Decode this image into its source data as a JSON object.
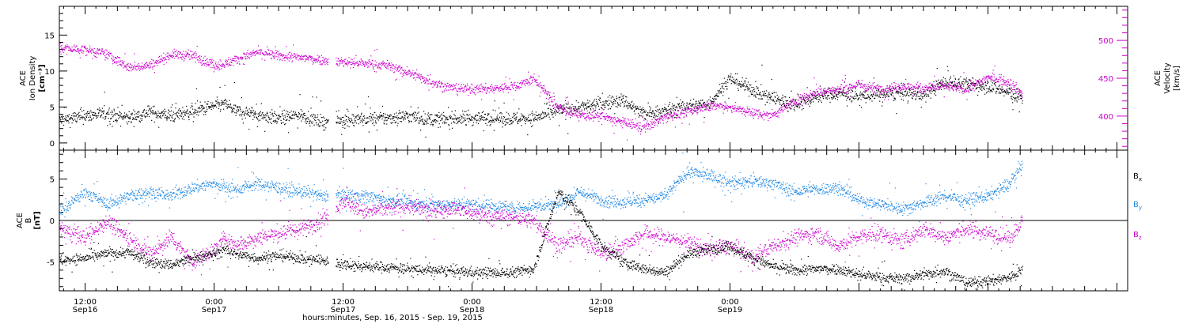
{
  "chart_data": [
    {
      "type": "scatter",
      "panel": "plasma",
      "ylabel_left": [
        "ACE",
        "Ion Density",
        "[cm⁻³]"
      ],
      "ylabel_right": [
        "ACE",
        "Velocity",
        "[km/s]"
      ],
      "ylim_left": [
        -1,
        19
      ],
      "yticks_left": [
        0,
        5,
        10,
        15
      ],
      "ylim_right": [
        355,
        545
      ],
      "yticks_right": [
        400,
        450,
        500
      ],
      "series": [
        {
          "name": "Ion Density",
          "axis": "left",
          "color": "#000000",
          "x": [
            -2.4,
            0,
            2,
            4,
            6,
            8,
            10,
            12,
            13,
            14,
            16,
            18,
            20,
            22,
            24,
            26,
            28,
            30,
            32,
            34,
            36,
            38,
            40,
            41.7,
            44,
            46,
            48,
            50,
            52,
            54,
            56,
            58,
            60,
            62,
            64,
            66,
            68,
            70,
            72,
            74,
            76,
            78,
            80,
            82,
            84,
            86,
            87.2
          ],
          "y": [
            3.2,
            3.8,
            4.2,
            3.5,
            4.3,
            3.8,
            4.5,
            5.2,
            5.5,
            4.5,
            4.0,
            3.4,
            4.0,
            3.0,
            3.2,
            3.4,
            3.5,
            3.8,
            3.3,
            3.4,
            3.5,
            3.6,
            3.4,
            3.5,
            4.5,
            5.0,
            5.5,
            6.0,
            4.0,
            4.5,
            5.2,
            5.5,
            9.0,
            7.5,
            6.2,
            5.5,
            6.5,
            7.0,
            6.5,
            6.8,
            7.0,
            6.8,
            8.5,
            8.2,
            8.0,
            7.0,
            6.0
          ]
        },
        {
          "name": "Velocity",
          "axis": "right",
          "color": "#cc00cc",
          "x": [
            -2.4,
            0,
            2,
            4,
            6,
            8,
            10,
            12,
            13,
            14,
            16,
            18,
            20,
            22,
            24,
            26,
            28,
            30,
            32,
            34,
            36,
            38,
            40,
            41.7,
            44,
            46,
            48,
            50,
            52,
            54,
            56,
            58,
            60,
            62,
            64,
            66,
            68,
            70,
            72,
            74,
            76,
            78,
            80,
            82,
            84,
            86,
            87.2
          ],
          "y": [
            490,
            488,
            482,
            465,
            468,
            482,
            480,
            468,
            470,
            475,
            485,
            480,
            478,
            475,
            472,
            470,
            468,
            458,
            447,
            438,
            436,
            437,
            440,
            450,
            412,
            402,
            400,
            392,
            385,
            400,
            405,
            415,
            412,
            405,
            402,
            420,
            432,
            435,
            442,
            436,
            440,
            437,
            440,
            436,
            452,
            445,
            430
          ]
        }
      ]
    },
    {
      "type": "scatter",
      "panel": "magnetic-field",
      "ylabel_left": [
        "ACE",
        "B",
        "[nT]"
      ],
      "ylim": [
        -8.5,
        8.5
      ],
      "yticks": [
        -5,
        0,
        5
      ],
      "legend_position": "right",
      "series": [
        {
          "name": "Bx",
          "label_main": "B",
          "label_sub": "x",
          "color": "#000000",
          "x": [
            -2.4,
            0,
            2,
            4,
            6,
            8,
            10,
            12,
            13,
            14,
            16,
            18,
            20,
            22,
            24,
            26,
            28,
            30,
            32,
            34,
            36,
            38,
            40,
            41.7,
            44,
            46,
            48,
            50,
            52,
            54,
            56,
            58,
            60,
            62,
            64,
            66,
            68,
            70,
            72,
            74,
            76,
            78,
            80,
            82,
            84,
            86,
            87.2
          ],
          "y": [
            -4.8,
            -4.5,
            -4.0,
            -3.8,
            -5.0,
            -5.3,
            -4.5,
            -4.0,
            -3.5,
            -4.0,
            -4.5,
            -4.2,
            -4.5,
            -4.8,
            -5.2,
            -5.5,
            -5.6,
            -5.8,
            -6.0,
            -6.1,
            -6.2,
            -6.3,
            -6.2,
            -5.8,
            3.5,
            1.0,
            -3.0,
            -5.0,
            -5.8,
            -6.2,
            -4.0,
            -3.5,
            -3.0,
            -4.5,
            -5.5,
            -6.0,
            -5.8,
            -5.8,
            -6.5,
            -6.8,
            -7.0,
            -6.5,
            -6.0,
            -7.5,
            -7.3,
            -6.8,
            -6.0
          ]
        },
        {
          "name": "By",
          "label_main": "B",
          "label_sub": "y",
          "color": "#1e88e5",
          "x": [
            -2.4,
            0,
            2,
            4,
            6,
            8,
            10,
            12,
            13,
            14,
            16,
            18,
            20,
            22,
            24,
            26,
            28,
            30,
            32,
            34,
            36,
            38,
            40,
            41.7,
            44,
            46,
            48,
            50,
            52,
            54,
            56,
            58,
            60,
            62,
            64,
            66,
            68,
            70,
            72,
            74,
            76,
            78,
            80,
            82,
            84,
            86,
            87.2
          ],
          "y": [
            1.0,
            3.5,
            2.0,
            3.0,
            3.5,
            3.0,
            4.0,
            4.5,
            4.0,
            3.8,
            4.5,
            4.0,
            3.5,
            3.0,
            3.2,
            3.0,
            2.5,
            2.2,
            2.0,
            2.0,
            2.0,
            1.8,
            1.5,
            1.8,
            2.0,
            3.5,
            2.5,
            2.2,
            2.5,
            3.0,
            6.0,
            5.5,
            4.5,
            4.8,
            4.5,
            3.5,
            3.8,
            4.0,
            2.5,
            2.0,
            1.5,
            2.2,
            3.0,
            2.5,
            3.0,
            4.5,
            7.0
          ]
        },
        {
          "name": "Bz",
          "label_main": "B",
          "label_sub": "z",
          "color": "#cc00cc",
          "x": [
            -2.4,
            0,
            2,
            4,
            6,
            8,
            10,
            12,
            13,
            14,
            16,
            18,
            20,
            22,
            24,
            26,
            28,
            30,
            32,
            34,
            36,
            38,
            40,
            41.7,
            44,
            46,
            48,
            50,
            52,
            54,
            56,
            58,
            60,
            62,
            64,
            66,
            68,
            70,
            72,
            74,
            76,
            78,
            80,
            82,
            84,
            86,
            87.2
          ],
          "y": [
            -1.0,
            -2.0,
            0.0,
            -2.0,
            -4.0,
            -2.0,
            -5.0,
            -3.5,
            -2.0,
            -3.0,
            -2.0,
            -1.5,
            -1.0,
            0.0,
            2.5,
            1.0,
            1.5,
            1.8,
            1.2,
            1.5,
            1.0,
            0.5,
            0.5,
            0.0,
            -3.0,
            -2.0,
            -4.0,
            -3.0,
            -1.5,
            -2.0,
            -2.5,
            -3.5,
            -3.0,
            -4.5,
            -3.0,
            -2.0,
            -1.5,
            -3.0,
            -2.0,
            -1.5,
            -2.5,
            -1.0,
            -2.0,
            -1.0,
            -1.5,
            -2.0,
            0.0
          ]
        }
      ]
    }
  ],
  "xaxis": {
    "xlim_hours": [
      -2.4,
      97
    ],
    "major_ticks": [
      {
        "x": 0,
        "line1": "12:00",
        "line2": "Sep16"
      },
      {
        "x": 12,
        "line1": "0:00",
        "line2": "Sep17"
      },
      {
        "x": 24,
        "line1": "12:00",
        "line2": "Sep17"
      },
      {
        "x": 36,
        "line1": "0:00",
        "line2": "Sep18"
      },
      {
        "x": 48,
        "line1": "12:00",
        "line2": "Sep18"
      },
      {
        "x": 60,
        "line1": "0:00",
        "line2": "Sep19"
      }
    ],
    "title": "hours:minutes, Sep. 16, 2015 - Sep. 19, 2015"
  }
}
